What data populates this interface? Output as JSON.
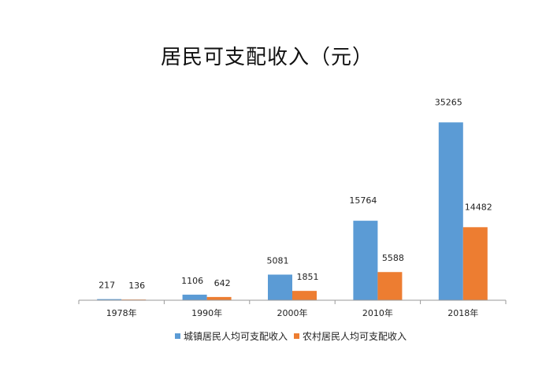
{
  "chart_data": {
    "type": "bar",
    "title": "居民可支配收入（元）",
    "categories": [
      "1978年",
      "1990年",
      "2000年",
      "2010年",
      "2018年"
    ],
    "series": [
      {
        "name": "城镇居民人均可支配收入",
        "color": "#5b9bd5",
        "values": [
          217,
          1106,
          5081,
          15764,
          35265
        ]
      },
      {
        "name": "农村居民人均可支配收入",
        "color": "#ed7d31",
        "values": [
          136,
          642,
          1851,
          5588,
          14482
        ]
      }
    ],
    "xlabel": "",
    "ylabel": "",
    "ylim": [
      0,
      40000
    ],
    "grid": false,
    "legend": "bottom"
  }
}
